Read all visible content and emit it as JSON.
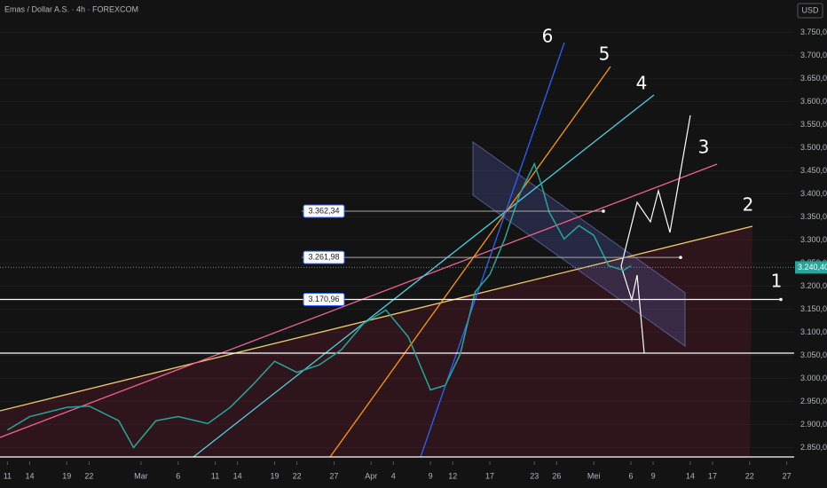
{
  "chart_data": {
    "type": "line",
    "title": "Emas / Dollar A.S. · 4h · FOREXCOM",
    "currency": "USD",
    "x": [
      0,
      3,
      8,
      11,
      15,
      17,
      20,
      23,
      27,
      30,
      33,
      36,
      39,
      42,
      45,
      48,
      51,
      54,
      57,
      59,
      61,
      63,
      65,
      67,
      69,
      71,
      72,
      73,
      75,
      77,
      79,
      81,
      83,
      84
    ],
    "values": [
      2888,
      2917,
      2937,
      2940,
      2908,
      2850,
      2908,
      2917,
      2902,
      2937,
      2985,
      3037,
      3013,
      3029,
      3062,
      3119,
      3148,
      3090,
      2975,
      2985,
      3052,
      3187,
      3225,
      3302,
      3398,
      3465,
      3417,
      3360,
      3302,
      3331,
      3310,
      3244,
      3234,
      3244
    ],
    "color": "#26a69a",
    "xlim": [
      -1,
      106
    ],
    "xticks": [
      {
        "value": 0,
        "label": "11"
      },
      {
        "value": 3,
        "label": "14"
      },
      {
        "value": 8,
        "label": "19"
      },
      {
        "value": 11,
        "label": "22"
      },
      {
        "value": 18,
        "label": "Mar"
      },
      {
        "value": 23,
        "label": "6"
      },
      {
        "value": 28,
        "label": "11"
      },
      {
        "value": 31,
        "label": "14"
      },
      {
        "value": 36,
        "label": "19"
      },
      {
        "value": 39,
        "label": "22"
      },
      {
        "value": 44,
        "label": "27"
      },
      {
        "value": 49,
        "label": "Apr"
      },
      {
        "value": 52,
        "label": "4"
      },
      {
        "value": 57,
        "label": "9"
      },
      {
        "value": 60,
        "label": "12"
      },
      {
        "value": 65,
        "label": "17"
      },
      {
        "value": 71,
        "label": "23"
      },
      {
        "value": 74,
        "label": "26"
      },
      {
        "value": 79,
        "label": "Mei"
      },
      {
        "value": 84,
        "label": "6"
      },
      {
        "value": 87,
        "label": "9"
      },
      {
        "value": 92,
        "label": "14"
      },
      {
        "value": 95,
        "label": "17"
      },
      {
        "value": 100,
        "label": "22"
      },
      {
        "value": 105,
        "label": "27"
      }
    ],
    "ylim": [
      2820,
      3820
    ],
    "yticks": [
      {
        "value": 2850,
        "label": "2.850,00"
      },
      {
        "value": 2900,
        "label": "2.900,00"
      },
      {
        "value": 2950,
        "label": "2.950,00"
      },
      {
        "value": 3000,
        "label": "3.000,00"
      },
      {
        "value": 3050,
        "label": "3.050,00"
      },
      {
        "value": 3100,
        "label": "3.100,00"
      },
      {
        "value": 3150,
        "label": "3.150,00"
      },
      {
        "value": 3200,
        "label": "3.200,00"
      },
      {
        "value": 3250,
        "label": "3.250,00"
      },
      {
        "value": 3300,
        "label": "3.300,00"
      },
      {
        "value": 3350,
        "label": "3.350,00"
      },
      {
        "value": 3400,
        "label": "3.400,00"
      },
      {
        "value": 3450,
        "label": "3.450,00"
      },
      {
        "value": 3500,
        "label": "3.500,00"
      },
      {
        "value": 3550,
        "label": "3.550,00"
      },
      {
        "value": 3600,
        "label": "3.600,00"
      },
      {
        "value": 3650,
        "label": "3.650,00"
      },
      {
        "value": 3700,
        "label": "3.700,00"
      },
      {
        "value": 3750,
        "label": "3.750,00"
      }
    ],
    "levels": [
      {
        "value": 3362.34,
        "label": "3.362,34"
      },
      {
        "value": 3261.98,
        "label": "3.261,98"
      },
      {
        "value": 3170.96,
        "label": "3.170,96"
      }
    ],
    "last_price": {
      "value": 3240.4,
      "label": "3.240,40"
    },
    "annotations": [
      "1",
      "2",
      "3",
      "4",
      "5",
      "6"
    ]
  }
}
